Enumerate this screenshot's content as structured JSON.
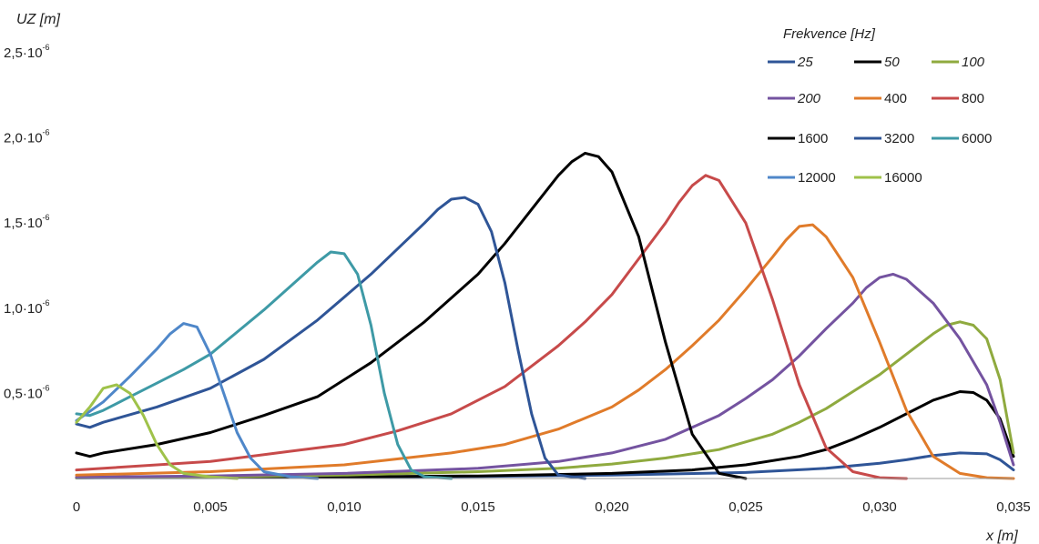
{
  "chart_data": {
    "type": "line",
    "title": "",
    "xlabel": "x [m]",
    "ylabel": "UZ [m]",
    "xlim": [
      0,
      0.035
    ],
    "ylim": [
      0,
      2.5e-06
    ],
    "x_ticks": [
      {
        "value": 0,
        "label": "0"
      },
      {
        "value": 0.005,
        "label": "0,005"
      },
      {
        "value": 0.01,
        "label": "0,010"
      },
      {
        "value": 0.015,
        "label": "0,015"
      },
      {
        "value": 0.02,
        "label": "0,020"
      },
      {
        "value": 0.025,
        "label": "0,025"
      },
      {
        "value": 0.03,
        "label": "0,030"
      },
      {
        "value": 0.035,
        "label": "0,035"
      }
    ],
    "y_ticks": [
      {
        "value": 5e-07,
        "mantissa": "0,5",
        "exponent": "-6"
      },
      {
        "value": 1e-06,
        "mantissa": "1,0",
        "exponent": "-6"
      },
      {
        "value": 1.5e-06,
        "mantissa": "1,5",
        "exponent": "-6"
      },
      {
        "value": 2e-06,
        "mantissa": "2,0",
        "exponent": "-6"
      },
      {
        "value": 2.5e-06,
        "mantissa": "2,5",
        "exponent": "-6"
      }
    ],
    "grid": false,
    "legend": {
      "title": "Frekvence [Hz]",
      "placement": "top-right",
      "columns": 3
    },
    "series": [
      {
        "name": "25",
        "italic": true,
        "color": "#2f5597",
        "points": [
          [
            0,
            0.003
          ],
          [
            0.005,
            0.005
          ],
          [
            0.01,
            0.008
          ],
          [
            0.015,
            0.012
          ],
          [
            0.02,
            0.02
          ],
          [
            0.025,
            0.035
          ],
          [
            0.028,
            0.06
          ],
          [
            0.03,
            0.09
          ],
          [
            0.031,
            0.11
          ],
          [
            0.032,
            0.135
          ],
          [
            0.033,
            0.15
          ],
          [
            0.034,
            0.145
          ],
          [
            0.0345,
            0.11
          ],
          [
            0.035,
            0.05
          ]
        ]
      },
      {
        "name": "50",
        "italic": true,
        "color": "#000000",
        "points": [
          [
            0,
            0.005
          ],
          [
            0.005,
            0.008
          ],
          [
            0.01,
            0.01
          ],
          [
            0.015,
            0.015
          ],
          [
            0.02,
            0.03
          ],
          [
            0.023,
            0.05
          ],
          [
            0.025,
            0.08
          ],
          [
            0.027,
            0.13
          ],
          [
            0.028,
            0.17
          ],
          [
            0.029,
            0.23
          ],
          [
            0.03,
            0.3
          ],
          [
            0.031,
            0.38
          ],
          [
            0.032,
            0.46
          ],
          [
            0.033,
            0.51
          ],
          [
            0.0335,
            0.505
          ],
          [
            0.034,
            0.46
          ],
          [
            0.0345,
            0.35
          ],
          [
            0.035,
            0.13
          ]
        ]
      },
      {
        "name": "100",
        "italic": true,
        "color": "#8faa3f",
        "points": [
          [
            0,
            0.005
          ],
          [
            0.005,
            0.01
          ],
          [
            0.01,
            0.02
          ],
          [
            0.015,
            0.04
          ],
          [
            0.018,
            0.06
          ],
          [
            0.02,
            0.085
          ],
          [
            0.022,
            0.12
          ],
          [
            0.024,
            0.17
          ],
          [
            0.026,
            0.26
          ],
          [
            0.027,
            0.33
          ],
          [
            0.028,
            0.41
          ],
          [
            0.029,
            0.51
          ],
          [
            0.03,
            0.61
          ],
          [
            0.031,
            0.73
          ],
          [
            0.032,
            0.85
          ],
          [
            0.0325,
            0.9
          ],
          [
            0.033,
            0.92
          ],
          [
            0.0335,
            0.9
          ],
          [
            0.034,
            0.82
          ],
          [
            0.0345,
            0.58
          ],
          [
            0.035,
            0.15
          ]
        ]
      },
      {
        "name": "200",
        "italic": true,
        "color": "#7453a0",
        "points": [
          [
            0,
            0.008
          ],
          [
            0.005,
            0.015
          ],
          [
            0.01,
            0.03
          ],
          [
            0.015,
            0.06
          ],
          [
            0.018,
            0.1
          ],
          [
            0.02,
            0.15
          ],
          [
            0.022,
            0.23
          ],
          [
            0.024,
            0.37
          ],
          [
            0.025,
            0.47
          ],
          [
            0.026,
            0.58
          ],
          [
            0.027,
            0.72
          ],
          [
            0.028,
            0.88
          ],
          [
            0.029,
            1.03
          ],
          [
            0.0295,
            1.12
          ],
          [
            0.03,
            1.18
          ],
          [
            0.0305,
            1.2
          ],
          [
            0.031,
            1.17
          ],
          [
            0.032,
            1.03
          ],
          [
            0.033,
            0.82
          ],
          [
            0.034,
            0.55
          ],
          [
            0.0345,
            0.33
          ],
          [
            0.035,
            0.08
          ]
        ]
      },
      {
        "name": "400",
        "italic": false,
        "color": "#e07b2a",
        "points": [
          [
            0,
            0.02
          ],
          [
            0.005,
            0.04
          ],
          [
            0.01,
            0.08
          ],
          [
            0.014,
            0.15
          ],
          [
            0.016,
            0.2
          ],
          [
            0.018,
            0.29
          ],
          [
            0.02,
            0.42
          ],
          [
            0.021,
            0.52
          ],
          [
            0.022,
            0.64
          ],
          [
            0.023,
            0.78
          ],
          [
            0.024,
            0.93
          ],
          [
            0.025,
            1.11
          ],
          [
            0.026,
            1.3
          ],
          [
            0.0265,
            1.4
          ],
          [
            0.027,
            1.48
          ],
          [
            0.0275,
            1.49
          ],
          [
            0.028,
            1.42
          ],
          [
            0.029,
            1.18
          ],
          [
            0.03,
            0.8
          ],
          [
            0.031,
            0.4
          ],
          [
            0.032,
            0.13
          ],
          [
            0.033,
            0.03
          ],
          [
            0.034,
            0.005
          ],
          [
            0.035,
            0.0
          ]
        ]
      },
      {
        "name": "800",
        "italic": false,
        "color": "#c74a4a",
        "points": [
          [
            0,
            0.05
          ],
          [
            0.005,
            0.1
          ],
          [
            0.008,
            0.16
          ],
          [
            0.01,
            0.2
          ],
          [
            0.012,
            0.28
          ],
          [
            0.014,
            0.38
          ],
          [
            0.016,
            0.54
          ],
          [
            0.018,
            0.78
          ],
          [
            0.019,
            0.92
          ],
          [
            0.02,
            1.08
          ],
          [
            0.021,
            1.29
          ],
          [
            0.022,
            1.5
          ],
          [
            0.0225,
            1.62
          ],
          [
            0.023,
            1.72
          ],
          [
            0.0235,
            1.78
          ],
          [
            0.024,
            1.75
          ],
          [
            0.025,
            1.5
          ],
          [
            0.026,
            1.05
          ],
          [
            0.027,
            0.55
          ],
          [
            0.028,
            0.18
          ],
          [
            0.029,
            0.04
          ],
          [
            0.03,
            0.005
          ],
          [
            0.031,
            0.0
          ]
        ]
      },
      {
        "name": "1600",
        "italic": false,
        "color": "#000000",
        "points": [
          [
            0,
            0.15
          ],
          [
            0.0005,
            0.13
          ],
          [
            0.001,
            0.15
          ],
          [
            0.003,
            0.2
          ],
          [
            0.005,
            0.27
          ],
          [
            0.007,
            0.37
          ],
          [
            0.009,
            0.48
          ],
          [
            0.011,
            0.68
          ],
          [
            0.013,
            0.92
          ],
          [
            0.015,
            1.2
          ],
          [
            0.016,
            1.38
          ],
          [
            0.017,
            1.58
          ],
          [
            0.018,
            1.78
          ],
          [
            0.0185,
            1.86
          ],
          [
            0.019,
            1.91
          ],
          [
            0.0195,
            1.89
          ],
          [
            0.02,
            1.8
          ],
          [
            0.021,
            1.42
          ],
          [
            0.022,
            0.8
          ],
          [
            0.023,
            0.26
          ],
          [
            0.024,
            0.03
          ],
          [
            0.025,
            0.0
          ]
        ]
      },
      {
        "name": "3200",
        "italic": false,
        "color": "#2f5597",
        "points": [
          [
            0,
            0.32
          ],
          [
            0.0005,
            0.3
          ],
          [
            0.001,
            0.33
          ],
          [
            0.003,
            0.42
          ],
          [
            0.005,
            0.53
          ],
          [
            0.007,
            0.7
          ],
          [
            0.009,
            0.93
          ],
          [
            0.011,
            1.2
          ],
          [
            0.012,
            1.35
          ],
          [
            0.013,
            1.5
          ],
          [
            0.0135,
            1.58
          ],
          [
            0.014,
            1.64
          ],
          [
            0.0145,
            1.65
          ],
          [
            0.015,
            1.61
          ],
          [
            0.0155,
            1.45
          ],
          [
            0.016,
            1.15
          ],
          [
            0.0165,
            0.75
          ],
          [
            0.017,
            0.38
          ],
          [
            0.0175,
            0.12
          ],
          [
            0.018,
            0.02
          ],
          [
            0.019,
            0.0
          ]
        ]
      },
      {
        "name": "6000",
        "italic": false,
        "color": "#3e9aa6",
        "points": [
          [
            0,
            0.38
          ],
          [
            0.0005,
            0.37
          ],
          [
            0.001,
            0.4
          ],
          [
            0.002,
            0.48
          ],
          [
            0.003,
            0.56
          ],
          [
            0.004,
            0.64
          ],
          [
            0.005,
            0.73
          ],
          [
            0.006,
            0.86
          ],
          [
            0.007,
            0.99
          ],
          [
            0.008,
            1.13
          ],
          [
            0.009,
            1.27
          ],
          [
            0.0095,
            1.33
          ],
          [
            0.01,
            1.32
          ],
          [
            0.0105,
            1.2
          ],
          [
            0.011,
            0.9
          ],
          [
            0.0115,
            0.5
          ],
          [
            0.012,
            0.2
          ],
          [
            0.0125,
            0.05
          ],
          [
            0.013,
            0.01
          ],
          [
            0.014,
            0.0
          ]
        ]
      },
      {
        "name": "12000",
        "italic": false,
        "color": "#4f87c9",
        "points": [
          [
            0,
            0.34
          ],
          [
            0.001,
            0.45
          ],
          [
            0.002,
            0.6
          ],
          [
            0.003,
            0.76
          ],
          [
            0.0035,
            0.85
          ],
          [
            0.004,
            0.91
          ],
          [
            0.0045,
            0.89
          ],
          [
            0.005,
            0.73
          ],
          [
            0.0055,
            0.5
          ],
          [
            0.006,
            0.27
          ],
          [
            0.0065,
            0.12
          ],
          [
            0.007,
            0.04
          ],
          [
            0.008,
            0.01
          ],
          [
            0.009,
            0.0
          ]
        ]
      },
      {
        "name": "16000",
        "italic": false,
        "color": "#9fc24a",
        "points": [
          [
            0,
            0.33
          ],
          [
            0.0005,
            0.42
          ],
          [
            0.001,
            0.53
          ],
          [
            0.0015,
            0.55
          ],
          [
            0.002,
            0.5
          ],
          [
            0.0025,
            0.37
          ],
          [
            0.003,
            0.2
          ],
          [
            0.0035,
            0.08
          ],
          [
            0.004,
            0.03
          ],
          [
            0.005,
            0.01
          ],
          [
            0.006,
            0.0
          ]
        ]
      }
    ]
  }
}
